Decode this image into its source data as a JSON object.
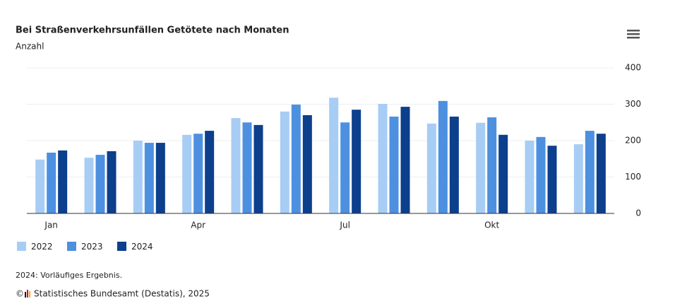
{
  "chart_data": {
    "type": "bar",
    "title": "Bei Straßenverkehrsunfällen Getötete nach Monaten",
    "subtitle": "Anzahl",
    "categories": [
      "Jan",
      null,
      null,
      "Apr",
      null,
      null,
      "Jul",
      null,
      null,
      "Okt",
      null,
      null
    ],
    "series": [
      {
        "name": "2022",
        "color": "#a7cdf5",
        "values": [
          148,
          153,
          200,
          216,
          262,
          280,
          318,
          301,
          247,
          249,
          200,
          190
        ]
      },
      {
        "name": "2023",
        "color": "#4d90e0",
        "values": [
          167,
          161,
          194,
          219,
          250,
          299,
          250,
          266,
          309,
          264,
          210,
          227
        ]
      },
      {
        "name": "2024",
        "color": "#0c3f8c",
        "values": [
          173,
          171,
          194,
          227,
          243,
          270,
          285,
          293,
          266,
          216,
          186,
          219
        ]
      }
    ],
    "ylim": [
      0,
      400
    ],
    "yticks": [
      0,
      100,
      200,
      300,
      400
    ],
    "grid": true,
    "footnote": "2024: Vorläufiges Ergebnis.",
    "copyright": "©",
    "credit": "Statistisches Bundesamt (Destatis), 2025"
  }
}
